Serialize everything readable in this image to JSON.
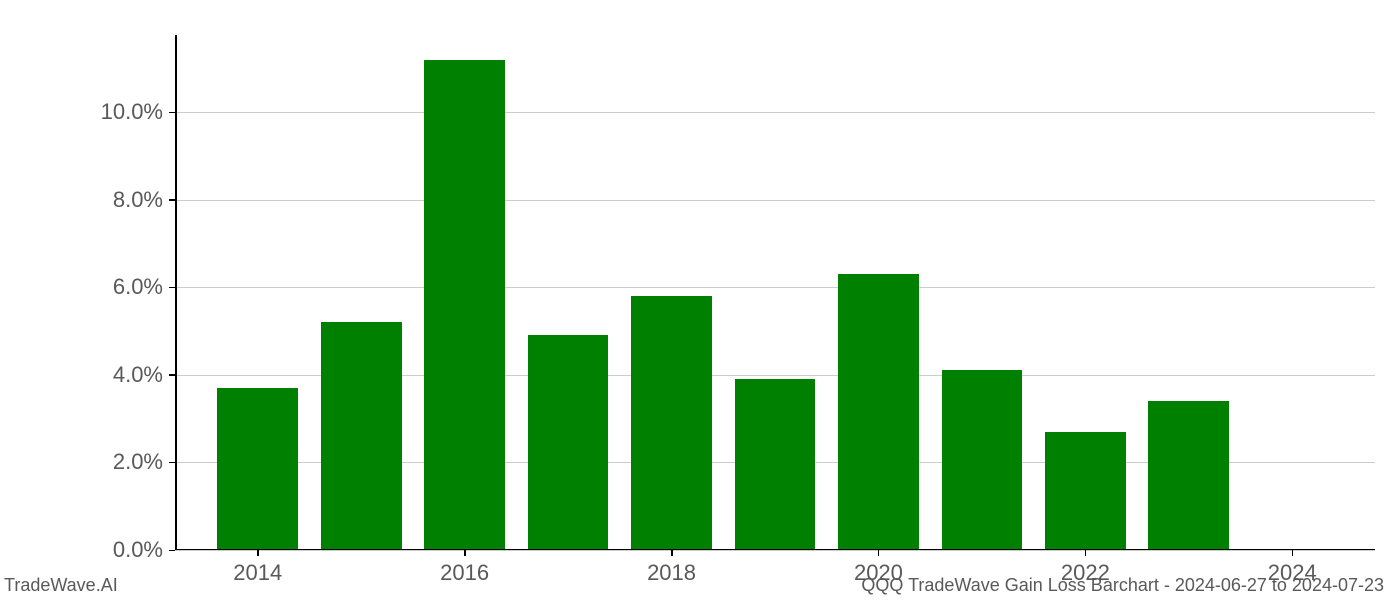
{
  "chart": {
    "type": "bar",
    "background_color": "#ffffff",
    "bar_color": "#008000",
    "grid_color": "#cccccc",
    "axis_color": "#000000",
    "tick_label_color": "#595959",
    "tick_fontsize": 22,
    "footer_fontsize": 18,
    "x_values": [
      2014,
      2015,
      2016,
      2017,
      2018,
      2019,
      2020,
      2021,
      2022,
      2023
    ],
    "y_values": [
      3.7,
      5.2,
      11.2,
      4.9,
      5.8,
      3.9,
      6.3,
      4.1,
      2.7,
      3.4
    ],
    "bar_width": 0.78,
    "xlim": [
      2013.2,
      2024.8
    ],
    "ylim": [
      0.0,
      11.76
    ],
    "x_ticks": [
      2014,
      2016,
      2018,
      2020,
      2022,
      2024
    ],
    "x_tick_labels": [
      "2014",
      "2016",
      "2018",
      "2020",
      "2022",
      "2024"
    ],
    "y_ticks": [
      0.0,
      2.0,
      4.0,
      6.0,
      8.0,
      10.0
    ],
    "y_tick_labels": [
      "0.0%",
      "2.0%",
      "4.0%",
      "6.0%",
      "8.0%",
      "10.0%"
    ]
  },
  "footer": {
    "left": "TradeWave.AI",
    "right": "QQQ TradeWave Gain Loss Barchart - 2024-06-27 to 2024-07-23"
  }
}
